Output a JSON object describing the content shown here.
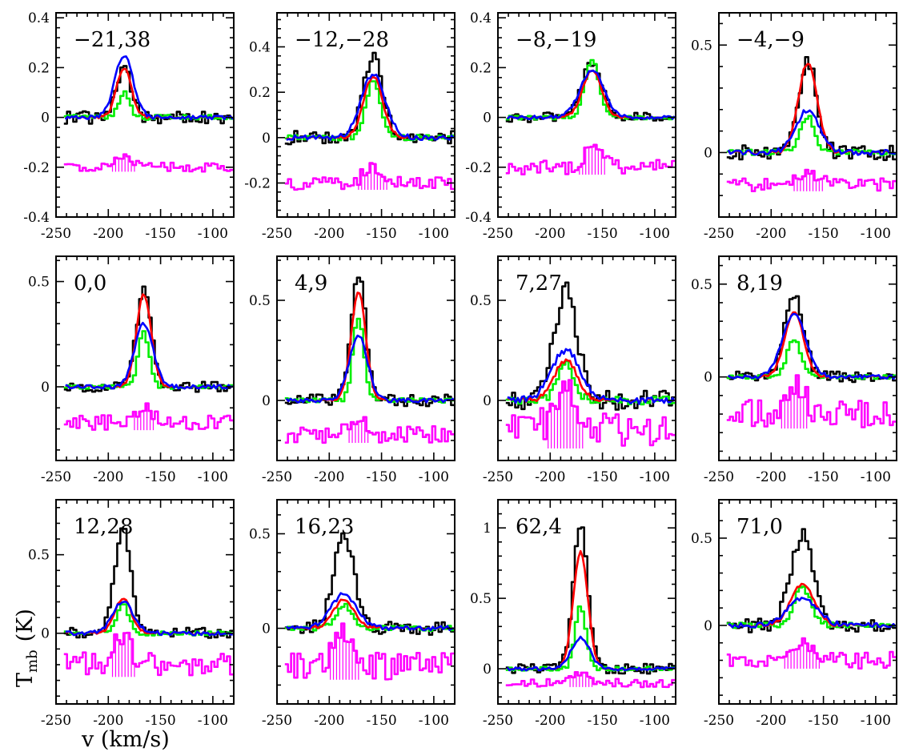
{
  "figure": {
    "ylabel": "T",
    "ylabel_sub": "mb",
    "ylabel_unit": "(K)",
    "xlabel": "v (km/s)"
  },
  "colors": {
    "observed": "#000000",
    "model_a": "#ff0000",
    "model_b": "#00ee00",
    "model_c": "#0000ff",
    "residual": "#ff00ff"
  },
  "chart_data": [
    {
      "type": "line",
      "label": "−21,38",
      "xlim": [
        -250,
        -80
      ],
      "ylim": [
        -0.4,
        0.42
      ],
      "yticks": [
        -0.4,
        -0.2,
        0,
        0.2,
        0.4
      ],
      "ytick_labels": [
        "-0.4",
        "-0.2",
        "0",
        "0.2",
        "0.4"
      ],
      "xticks": [
        -250,
        -200,
        -150,
        -100
      ],
      "xtick_labels": [
        "-250",
        "-200",
        "-150",
        "-100"
      ],
      "center": -185,
      "peaks": {
        "observed": 0.2,
        "model_a": 0.2,
        "model_b": 0.1,
        "model_c": 0.25
      },
      "width": 7,
      "noise": 0.025,
      "resid_base": -0.2,
      "resid_amp": 0.03
    },
    {
      "type": "line",
      "label": "−12,−28",
      "xlim": [
        -250,
        -80
      ],
      "ylim": [
        -0.35,
        0.55
      ],
      "yticks": [
        -0.2,
        0,
        0.2,
        0.4
      ],
      "ytick_labels": [
        "-0.2",
        "0",
        "0.2",
        "0.4"
      ],
      "xticks": [
        -250,
        -200,
        -150,
        -100
      ],
      "xtick_labels": [
        "-250",
        "-200",
        "-150",
        "-100"
      ],
      "center": -158,
      "peaks": {
        "observed": 0.35,
        "model_a": 0.27,
        "model_b": 0.25,
        "model_c": 0.28
      },
      "width": 9,
      "noise": 0.03,
      "resid_base": -0.2,
      "resid_amp": 0.05
    },
    {
      "type": "line",
      "label": "−8,−19",
      "xlim": [
        -250,
        -80
      ],
      "ylim": [
        -0.4,
        0.42
      ],
      "yticks": [
        -0.4,
        -0.2,
        0,
        0.2,
        0.4
      ],
      "ytick_labels": [
        "-0.4",
        "-0.2",
        "0",
        "0.2",
        "0.4"
      ],
      "xticks": [
        -250,
        -200,
        -150,
        -100
      ],
      "xtick_labels": [
        "-250",
        "-200",
        "-150",
        "-100"
      ],
      "center": -160,
      "peaks": {
        "observed": 0.22,
        "model_a": 0.19,
        "model_b": 0.23,
        "model_c": 0.19
      },
      "width": 9,
      "noise": 0.02,
      "resid_base": -0.2,
      "resid_amp": 0.05
    },
    {
      "type": "line",
      "label": "−4,−9",
      "xlim": [
        -250,
        -80
      ],
      "ylim": [
        -0.3,
        0.65
      ],
      "yticks": [
        0,
        0.5
      ],
      "ytick_labels": [
        "0",
        "0.5"
      ],
      "xticks": [
        -250,
        -200,
        -150,
        -100
      ],
      "xtick_labels": [
        "-250",
        "-200",
        "-150",
        "-100"
      ],
      "center": -165,
      "peaks": {
        "observed": 0.42,
        "model_a": 0.42,
        "model_b": 0.17,
        "model_c": 0.2
      },
      "width": 9,
      "noise": 0.035,
      "resid_base": -0.15,
      "resid_amp": 0.05
    },
    {
      "type": "line",
      "label": "0,0",
      "xlim": [
        -250,
        -80
      ],
      "ylim": [
        -0.35,
        0.62
      ],
      "yticks": [
        0,
        0.5
      ],
      "ytick_labels": [
        "0",
        "0.5"
      ],
      "xticks": [
        -250,
        -200,
        -150,
        -100
      ],
      "xtick_labels": [
        "-250",
        "-200",
        "-150",
        "-100"
      ],
      "center": -166,
      "peaks": {
        "observed": 0.46,
        "model_a": 0.44,
        "model_b": 0.26,
        "model_c": 0.3
      },
      "width": 7,
      "noise": 0.025,
      "resid_base": -0.17,
      "resid_amp": 0.06
    },
    {
      "type": "line",
      "label": "4,9",
      "xlim": [
        -250,
        -80
      ],
      "ylim": [
        -0.3,
        0.72
      ],
      "yticks": [
        0,
        0.5
      ],
      "ytick_labels": [
        "0",
        "0.5"
      ],
      "xticks": [
        -250,
        -200,
        -150,
        -100
      ],
      "xtick_labels": [
        "-250",
        "-200",
        "-150",
        "-100"
      ],
      "center": -172,
      "peaks": {
        "observed": 0.64,
        "model_a": 0.54,
        "model_b": 0.42,
        "model_c": 0.32
      },
      "width": 7,
      "noise": 0.03,
      "resid_base": -0.17,
      "resid_amp": 0.07
    },
    {
      "type": "line",
      "label": "7,27",
      "xlim": [
        -250,
        -80
      ],
      "ylim": [
        -0.3,
        0.72
      ],
      "yticks": [
        0,
        0.5
      ],
      "ytick_labels": [
        "0",
        "0.5"
      ],
      "xticks": [
        -250,
        -200,
        -150,
        -100
      ],
      "xtick_labels": [
        "-250",
        "-200",
        "-150",
        "-100"
      ],
      "center": -185,
      "peaks": {
        "observed": 0.55,
        "model_a": 0.2,
        "model_b": 0.18,
        "model_c": 0.25
      },
      "width": 11,
      "noise": 0.05,
      "resid_base": -0.15,
      "resid_amp": 0.15
    },
    {
      "type": "line",
      "label": "8,19",
      "xlim": [
        -250,
        -80
      ],
      "ylim": [
        -0.45,
        0.65
      ],
      "yticks": [
        0,
        0.5
      ],
      "ytick_labels": [
        "0",
        "0.5"
      ],
      "xticks": [
        -250,
        -200,
        -150,
        -100
      ],
      "xtick_labels": [
        "-250",
        "-200",
        "-150",
        "-100"
      ],
      "center": -178,
      "peaks": {
        "observed": 0.45,
        "model_a": 0.35,
        "model_b": 0.2,
        "model_c": 0.34
      },
      "width": 9,
      "noise": 0.03,
      "resid_base": -0.2,
      "resid_amp": 0.13
    },
    {
      "type": "line",
      "label": "12,28",
      "xlim": [
        -250,
        -80
      ],
      "ylim": [
        -0.45,
        0.85
      ],
      "yticks": [
        0,
        0.5
      ],
      "ytick_labels": [
        "0",
        "0.5"
      ],
      "xticks": [
        -250,
        -200,
        -150,
        -100
      ],
      "xtick_labels": [
        "-250",
        "-200",
        "-150",
        "-100"
      ],
      "center": -186,
      "peaks": {
        "observed": 0.65,
        "model_a": 0.22,
        "model_b": 0.18,
        "model_c": 0.2
      },
      "width": 8,
      "noise": 0.035,
      "resid_base": -0.2,
      "resid_amp": 0.13
    },
    {
      "type": "line",
      "label": "16,23",
      "xlim": [
        -250,
        -80
      ],
      "ylim": [
        -0.4,
        0.68
      ],
      "yticks": [
        0,
        0.5
      ],
      "ytick_labels": [
        "0",
        "0.5"
      ],
      "xticks": [
        -250,
        -200,
        -150,
        -100
      ],
      "xtick_labels": [
        "-250",
        "-200",
        "-150",
        "-100"
      ],
      "center": -186,
      "peaks": {
        "observed": 0.48,
        "model_a": 0.15,
        "model_b": 0.12,
        "model_c": 0.18
      },
      "width": 10,
      "noise": 0.035,
      "resid_base": -0.2,
      "resid_amp": 0.12
    },
    {
      "type": "line",
      "label": "62,4",
      "xlim": [
        -250,
        -80
      ],
      "ylim": [
        -0.25,
        1.2
      ],
      "yticks": [
        0,
        0.5,
        1
      ],
      "ytick_labels": [
        "0",
        "0.5",
        "1"
      ],
      "xticks": [
        -250,
        -200,
        -150,
        -100
      ],
      "xtick_labels": [
        "-250",
        "-200",
        "-150",
        "-100"
      ],
      "center": -171,
      "peaks": {
        "observed": 1.03,
        "model_a": 0.83,
        "model_b": 0.45,
        "model_c": 0.22
      },
      "width": 7,
      "noise": 0.035,
      "resid_base": -0.1,
      "resid_amp": 0.05
    },
    {
      "type": "line",
      "label": "71,0",
      "xlim": [
        -250,
        -80
      ],
      "ylim": [
        -0.45,
        0.72
      ],
      "yticks": [
        0,
        0.5
      ],
      "ytick_labels": [
        "0",
        "0.5"
      ],
      "xticks": [
        -250,
        -200,
        -150,
        -100
      ],
      "xtick_labels": [
        "-250",
        "-200",
        "-150",
        "-100"
      ],
      "center": -170,
      "peaks": {
        "observed": 0.52,
        "model_a": 0.24,
        "model_b": 0.22,
        "model_c": 0.16
      },
      "width": 11,
      "noise": 0.04,
      "resid_base": -0.2,
      "resid_amp": 0.08
    }
  ]
}
